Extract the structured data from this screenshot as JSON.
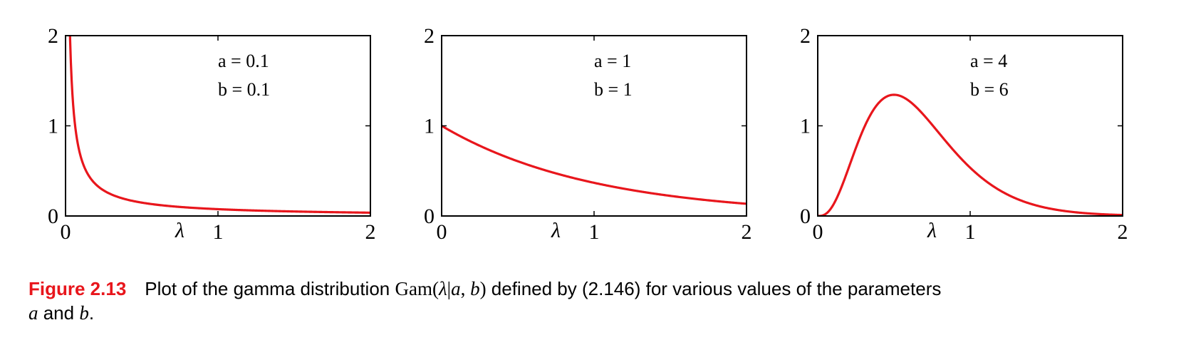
{
  "chart_data": [
    {
      "type": "line",
      "params": {
        "a_label": "a = 0.1",
        "b_label": "b = 0.1",
        "a": 0.1,
        "b": 0.1
      },
      "xlabel": "λ",
      "xlim": [
        0,
        2
      ],
      "ylim": [
        0,
        2
      ],
      "xticks": [
        "0",
        "1",
        "2"
      ],
      "yticks": [
        "0",
        "1",
        "2"
      ],
      "series": [
        {
          "color": "#e8161c",
          "x": [
            0.02,
            0.05,
            0.1,
            0.15,
            0.2,
            0.3,
            0.5,
            0.75,
            1.0,
            1.5,
            2.0
          ],
          "y": [
            2.0,
            1.34,
            0.73,
            0.5,
            0.38,
            0.26,
            0.16,
            0.11,
            0.087,
            0.06,
            0.046
          ]
        }
      ]
    },
    {
      "type": "line",
      "params": {
        "a_label": "a = 1",
        "b_label": "b = 1",
        "a": 1,
        "b": 1
      },
      "xlabel": "λ",
      "xlim": [
        0,
        2
      ],
      "ylim": [
        0,
        2
      ],
      "xticks": [
        "0",
        "1",
        "2"
      ],
      "yticks": [
        "0",
        "1",
        "2"
      ],
      "series": [
        {
          "color": "#e8161c",
          "x": [
            0,
            0.25,
            0.5,
            0.75,
            1.0,
            1.25,
            1.5,
            1.75,
            2.0
          ],
          "y": [
            1.0,
            0.78,
            0.61,
            0.47,
            0.37,
            0.29,
            0.22,
            0.17,
            0.135
          ]
        }
      ]
    },
    {
      "type": "line",
      "params": {
        "a_label": "a = 4",
        "b_label": "b = 6",
        "a": 4,
        "b": 6
      },
      "xlabel": "λ",
      "xlim": [
        0,
        2
      ],
      "ylim": [
        0,
        2
      ],
      "xticks": [
        "0",
        "1",
        "2"
      ],
      "yticks": [
        "0",
        "1",
        "2"
      ],
      "series": [
        {
          "color": "#e8161c",
          "x": [
            0,
            0.1,
            0.2,
            0.3,
            0.4,
            0.5,
            0.6,
            0.7,
            0.8,
            1.0,
            1.2,
            1.5,
            1.8,
            2.0
          ],
          "y": [
            0,
            0.12,
            0.58,
            1.06,
            1.31,
            1.35,
            1.22,
            1.02,
            0.81,
            0.46,
            0.23,
            0.07,
            0.02,
            0.01
          ]
        }
      ]
    }
  ],
  "caption": {
    "figure_number": "Figure 2.13",
    "text_before": "Plot of the gamma distribution ",
    "math_gam": "Gam(",
    "math_lambda": "λ",
    "math_bar": "|",
    "math_a": "a",
    "math_comma": ", ",
    "math_b": "b",
    "math_close": ")",
    "text_after": " defined by (2.146) for various values of the parameters",
    "line2_a": "a",
    "line2_and": " and ",
    "line2_b": "b",
    "line2_end": "."
  }
}
